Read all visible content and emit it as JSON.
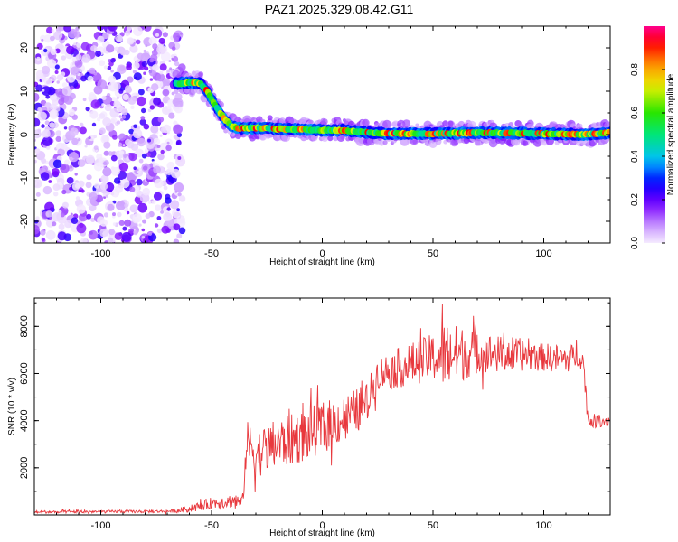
{
  "title": "PAZ1.2025.329.08.42.G11",
  "chart_data": [
    {
      "type": "heatmap",
      "name": "spectrogram",
      "xlabel": "Height of straight line (km)",
      "ylabel": "Frequency (Hz)",
      "xlim": [
        -130,
        130
      ],
      "ylim": [
        -25,
        25
      ],
      "xticks": [
        -100,
        -50,
        0,
        50,
        100
      ],
      "yticks": [
        -20,
        -10,
        0,
        10,
        20
      ],
      "noise_region_x": [
        -130,
        -63
      ],
      "ridge": {
        "x": [
          -65,
          -60,
          -55,
          -52,
          -48,
          -44,
          -41,
          -38,
          -30,
          -20,
          -10,
          0,
          10,
          20,
          30,
          40,
          50,
          60,
          70,
          80,
          90,
          100,
          110,
          120,
          130
        ],
        "freq": [
          11.8,
          12,
          11.8,
          10,
          6.5,
          3.5,
          2,
          1.5,
          1.5,
          1.3,
          1.2,
          1,
          1,
          0.5,
          0.2,
          0.2,
          0.2,
          0.3,
          0.4,
          0.4,
          0.3,
          0.2,
          0.1,
          0,
          0.5
        ]
      },
      "colorbar": {
        "label": "Normalized spectral amplitude",
        "min": 0,
        "max": 1,
        "ticks": [
          0.0,
          0.2,
          0.4,
          0.6,
          0.8
        ],
        "tick_labels": [
          "0.0",
          "0.2",
          "0.4",
          "0.6",
          "0.8"
        ]
      }
    },
    {
      "type": "line",
      "name": "snr",
      "xlabel": "Height of straight line (km)",
      "ylabel": "SNR (10 * v/v)",
      "xlim": [
        -130,
        130
      ],
      "ylim": [
        0,
        9200
      ],
      "xticks": [
        -100,
        -50,
        0,
        50,
        100
      ],
      "yticks": [
        2000,
        4000,
        6000,
        8000
      ],
      "color": "#e8383d",
      "envelope": {
        "x": [
          -130,
          -70,
          -60,
          -50,
          -40,
          -36,
          -34,
          -30,
          -20,
          -10,
          0,
          10,
          20,
          25,
          30,
          40,
          50,
          55,
          60,
          70,
          80,
          90,
          100,
          110,
          116,
          118,
          120,
          130
        ],
        "mean": [
          120,
          150,
          250,
          500,
          600,
          500,
          3200,
          2600,
          3000,
          3300,
          3700,
          4100,
          4700,
          6000,
          6100,
          6400,
          6700,
          6800,
          6800,
          6900,
          6800,
          6800,
          6700,
          6600,
          6800,
          6400,
          4000,
          4000
        ],
        "amp": [
          60,
          60,
          150,
          250,
          300,
          300,
          800,
          1000,
          1100,
          1100,
          1100,
          1000,
          900,
          700,
          800,
          900,
          1000,
          1500,
          1300,
          900,
          800,
          700,
          600,
          600,
          500,
          500,
          300,
          250
        ]
      }
    }
  ]
}
